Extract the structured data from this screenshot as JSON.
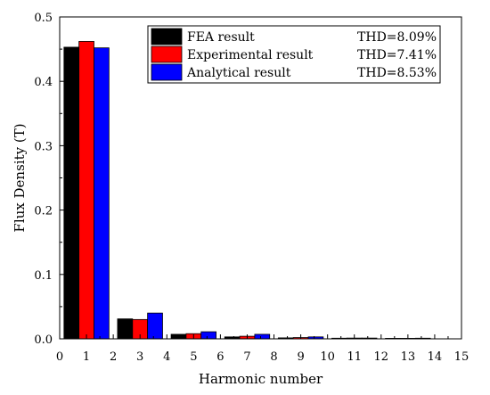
{
  "chart_data": {
    "type": "bar",
    "xlabel": "Harmonic number",
    "ylabel": "Flux Density (T)",
    "xlim": [
      0,
      15
    ],
    "ylim": [
      0,
      0.5
    ],
    "x_ticks": [
      0,
      1,
      2,
      3,
      4,
      5,
      6,
      7,
      8,
      9,
      10,
      11,
      12,
      13,
      14,
      15
    ],
    "y_ticks": [
      0.0,
      0.1,
      0.2,
      0.3,
      0.4,
      0.5
    ],
    "y_tick_labels": [
      "0.0",
      "0.1",
      "0.2",
      "0.3",
      "0.4",
      "0.5"
    ],
    "grid": false,
    "legend_position": "top-right",
    "categories": [
      1,
      3,
      5,
      7,
      9,
      11,
      13
    ],
    "series": [
      {
        "name": "FEA result",
        "thd": "THD=8.09%",
        "color": "#000000",
        "values": [
          0.453,
          0.031,
          0.007,
          0.003,
          0.0015,
          0.001,
          0.0008
        ]
      },
      {
        "name": "Experimental result",
        "thd": "THD=7.41%",
        "color": "#ff0000",
        "values": [
          0.462,
          0.03,
          0.008,
          0.004,
          0.002,
          0.0012,
          0.0008
        ]
      },
      {
        "name": "Analytical result",
        "thd": "THD=8.53%",
        "color": "#0000ff",
        "values": [
          0.452,
          0.04,
          0.011,
          0.007,
          0.003,
          0.0012,
          0.001
        ]
      }
    ]
  }
}
